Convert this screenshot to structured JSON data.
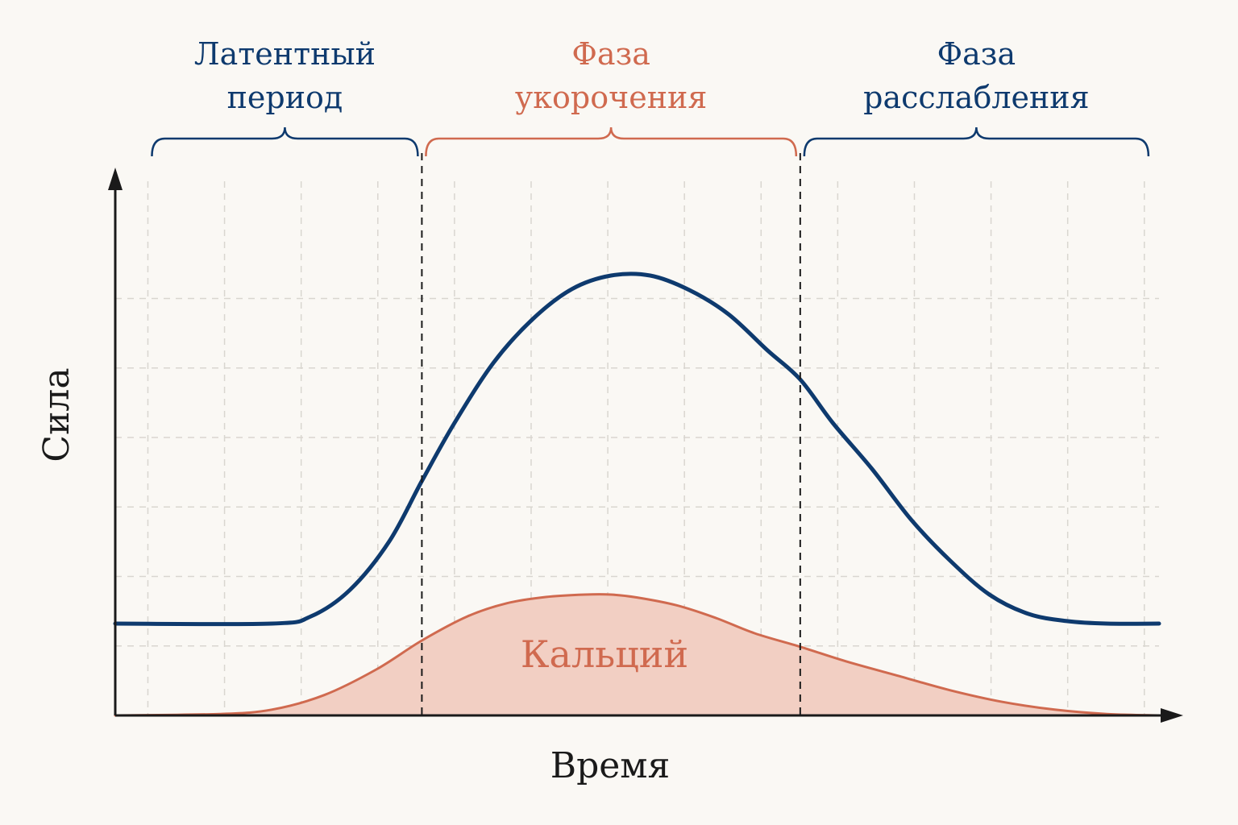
{
  "colors": {
    "force": "#0e3a6e",
    "calcium": "#d06a4f",
    "calcium_fill": "#f2cfc3",
    "axis": "#1a1a1a",
    "grid": "#d9d6d0",
    "background": "#faf8f4"
  },
  "chart_data": {
    "type": "line",
    "xlabel": "Время",
    "ylabel": "Сила",
    "grid": true,
    "phases": [
      {
        "line1": "Латентный",
        "line2": "период",
        "color": "#0e3a6e",
        "x_start": 0.25,
        "x_end": 2.35
      },
      {
        "line1": "Фаза",
        "line2": "укорочения",
        "color": "#d06a4f",
        "x_start": 2.35,
        "x_end": 5.25
      },
      {
        "line1": "Фаза",
        "line2": "расслабления",
        "color": "#0e3a6e",
        "x_start": 5.25,
        "x_end": 7.95
      }
    ],
    "phase_boundaries": [
      2.35,
      5.25
    ],
    "xlim": [
      0,
      8
    ],
    "ylim": [
      0,
      10
    ],
    "series": [
      {
        "label_text": "",
        "color": "#0e3a6e",
        "fill": false,
        "x": [
          0,
          1.2,
          1.5,
          1.8,
          2.1,
          2.35,
          2.6,
          2.9,
          3.2,
          3.5,
          3.8,
          4.1,
          4.4,
          4.7,
          5.0,
          5.25,
          5.5,
          5.8,
          6.1,
          6.4,
          6.7,
          7.0,
          7.3,
          7.6,
          8.0
        ],
        "y": [
          1.9,
          1.9,
          2.05,
          2.6,
          3.6,
          4.85,
          6.05,
          7.3,
          8.2,
          8.82,
          9.1,
          9.1,
          8.8,
          8.3,
          7.55,
          6.95,
          6.05,
          5.1,
          4.05,
          3.2,
          2.5,
          2.1,
          1.95,
          1.9,
          1.9
        ]
      },
      {
        "label_text": "Кальций",
        "color": "#d06a4f",
        "fill": true,
        "x": [
          0,
          0.8,
          1.2,
          1.6,
          2.0,
          2.35,
          2.7,
          3.0,
          3.3,
          3.6,
          3.8,
          4.0,
          4.3,
          4.6,
          4.9,
          5.25,
          5.6,
          6.0,
          6.4,
          6.8,
          7.2,
          7.6,
          8.0
        ],
        "y": [
          0,
          0.03,
          0.12,
          0.42,
          0.95,
          1.55,
          2.05,
          2.32,
          2.45,
          2.5,
          2.5,
          2.44,
          2.28,
          2.02,
          1.7,
          1.42,
          1.12,
          0.82,
          0.52,
          0.28,
          0.12,
          0.03,
          0
        ]
      }
    ]
  }
}
